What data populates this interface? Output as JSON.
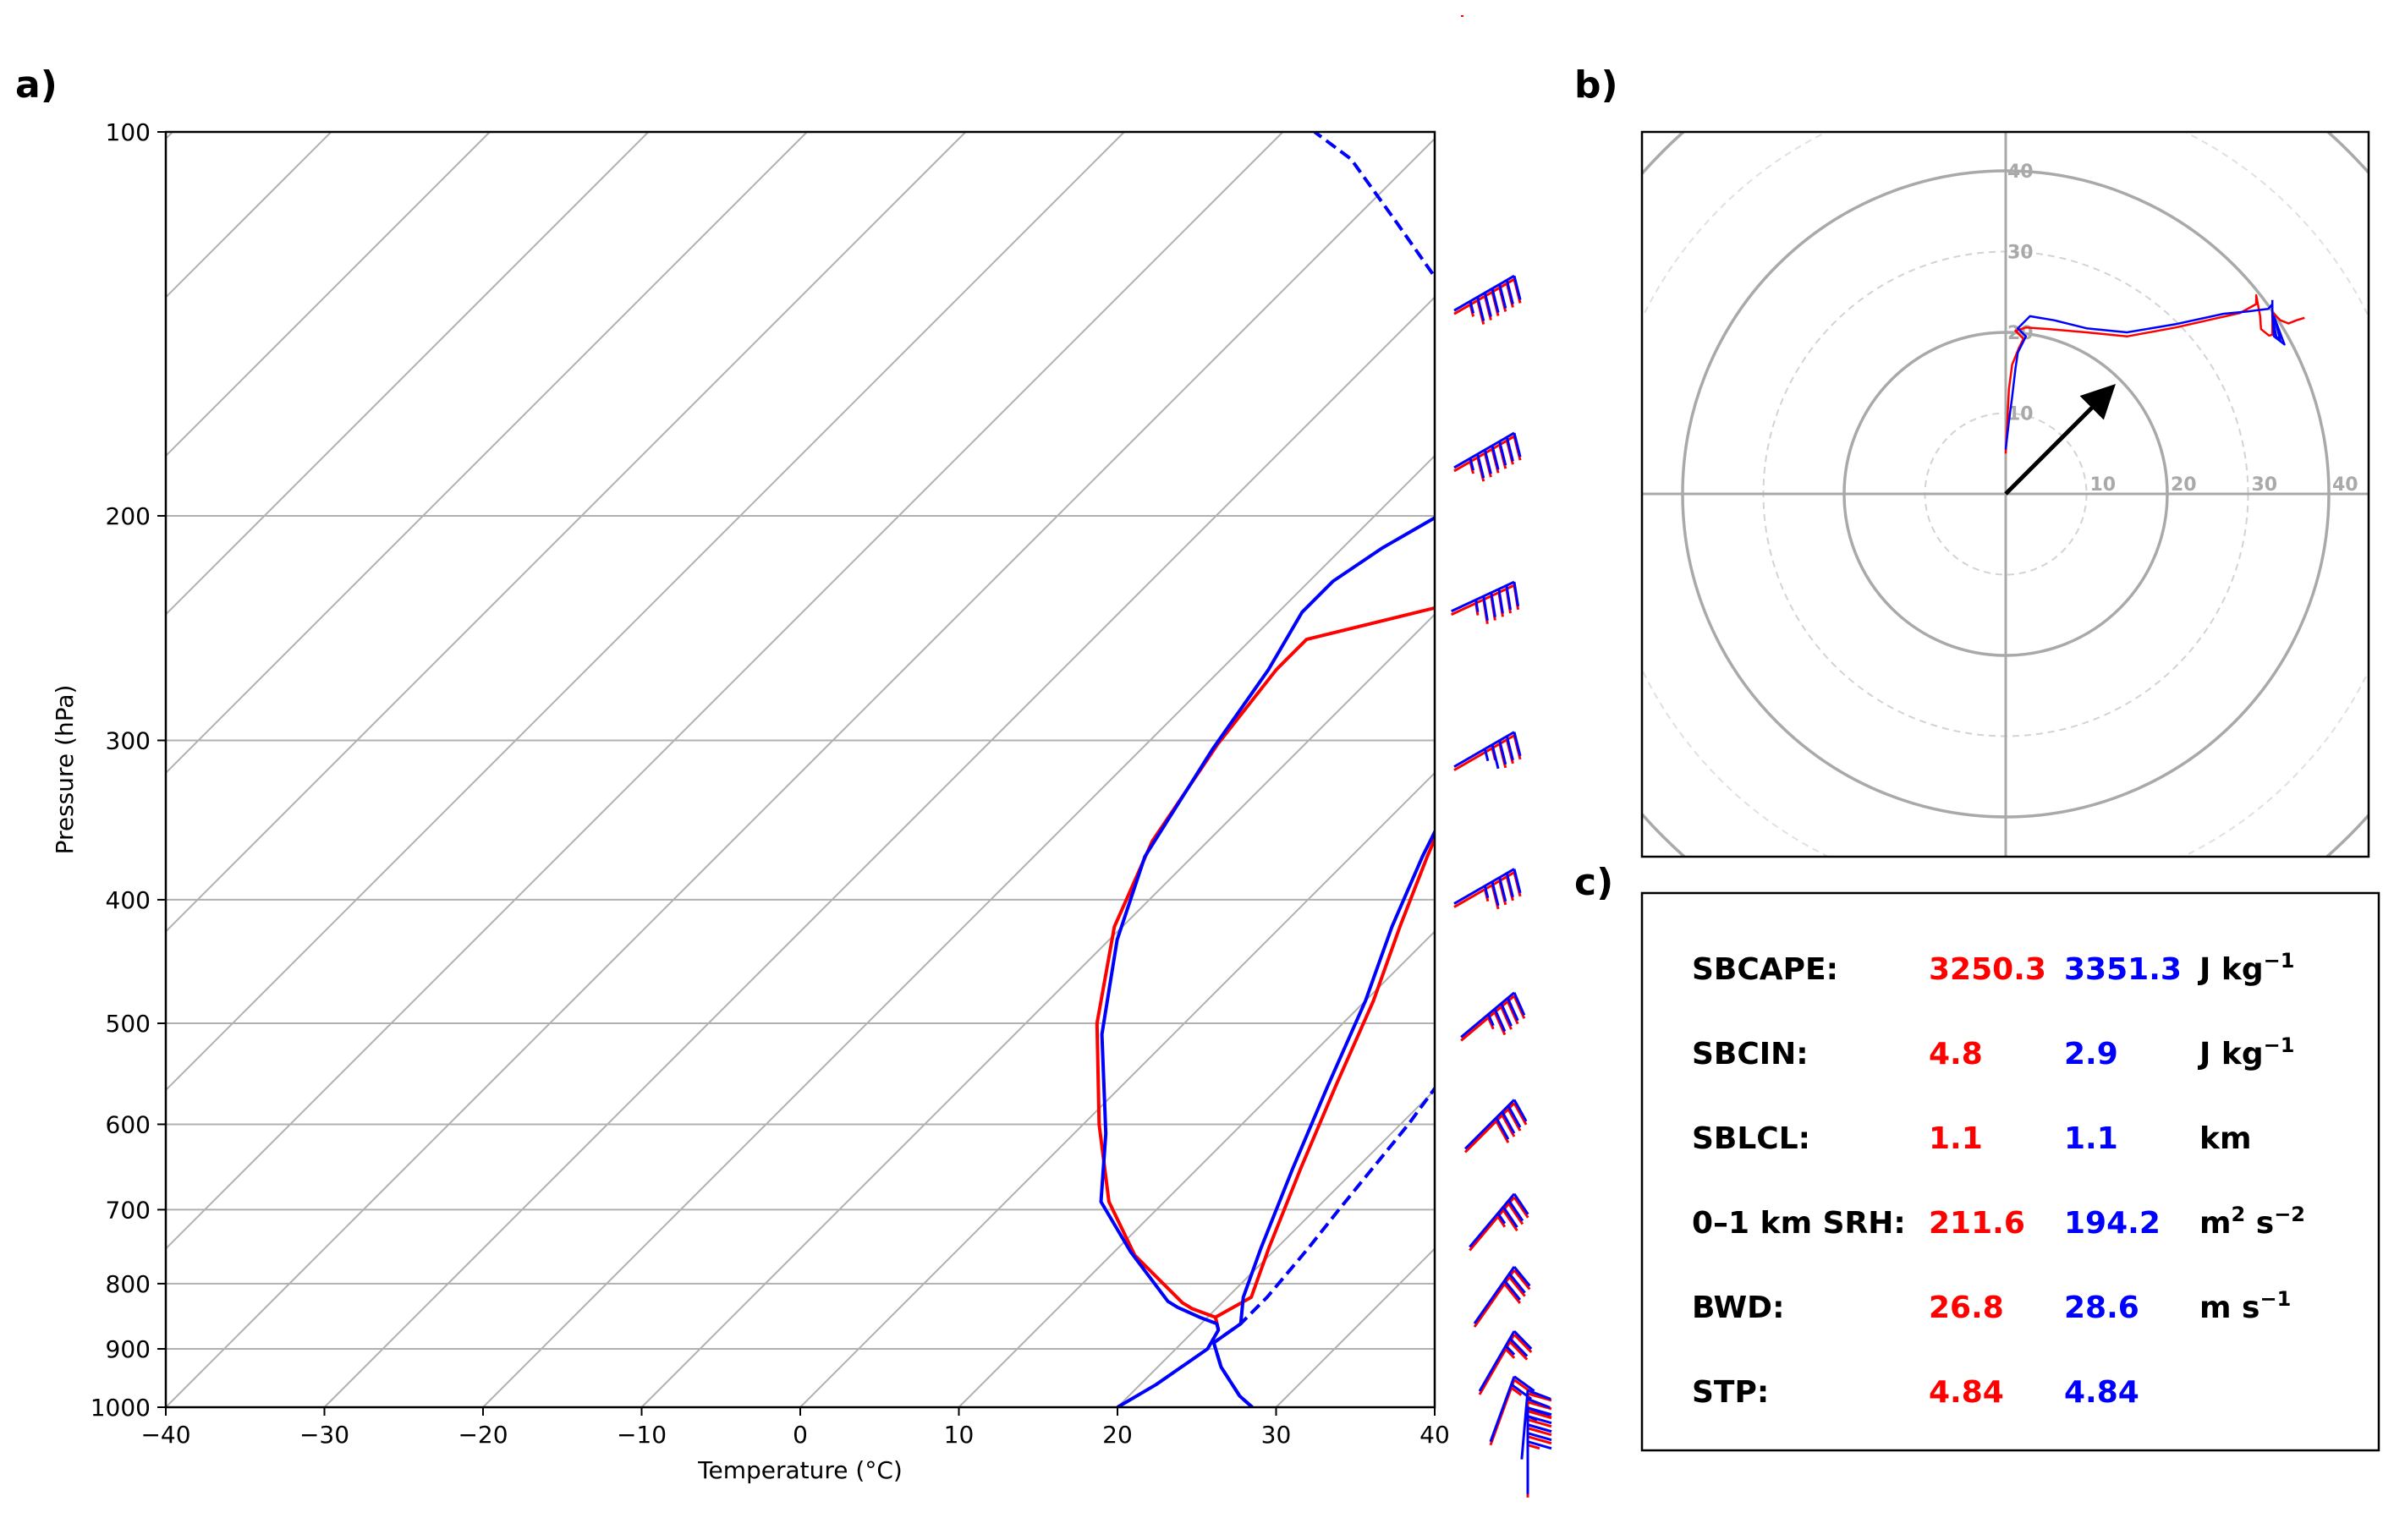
{
  "panel_labels": {
    "a": "a)",
    "b": "b)",
    "c": "c)"
  },
  "colors": {
    "model_red": "#ff0000",
    "model_blue": "#0000ff",
    "grid": "#b0b0b0",
    "hodo_ring": "#a9a9a9"
  },
  "chart_data": [
    {
      "type": "line",
      "name": "skew-t log-p sounding",
      "xlabel": "Temperature (°C)",
      "ylabel": "Pressure (hPa)",
      "xlim": [
        -40,
        40
      ],
      "ylim": [
        1000,
        100
      ],
      "x_ticks": [
        -40,
        -30,
        -20,
        -10,
        0,
        10,
        20,
        30,
        40
      ],
      "x_tick_labels": [
        "−40",
        "−30",
        "−20",
        "−10",
        "0",
        "10",
        "20",
        "30",
        "40"
      ],
      "y_ticks": [
        1000,
        900,
        800,
        700,
        600,
        500,
        400,
        300,
        200,
        100
      ],
      "y_tick_labels": [
        "1000",
        "900",
        "800",
        "700",
        "600",
        "500",
        "400",
        "300",
        "200",
        "100"
      ],
      "skew_degrees": 45,
      "series": [
        {
          "name": "red temperature",
          "color": "#ff0000",
          "style": "solid",
          "points": [
            [
              21.5,
              870
            ],
            [
              20.5,
              850
            ],
            [
              21.5,
              820
            ],
            [
              19.5,
              750
            ],
            [
              16.5,
              650
            ],
            [
              13.5,
              560
            ],
            [
              10.5,
              480
            ],
            [
              7.5,
              420
            ],
            [
              4.8,
              370
            ],
            [
              2.5,
              330
            ],
            [
              0.0,
              290
            ],
            [
              -2.5,
              255
            ],
            [
              -3.5,
              225
            ],
            [
              -3,
              205
            ],
            [
              -2.8,
              185
            ],
            [
              -2.0,
              170
            ],
            [
              0.5,
              155
            ],
            [
              6,
              140
            ],
            [
              9,
              132
            ],
            [
              12,
              125
            ],
            [
              16,
              113
            ],
            [
              19,
              104
            ],
            [
              20.5,
              100
            ]
          ]
        },
        {
          "name": "red dewpoint",
          "color": "#ff0000",
          "style": "solid",
          "points": [
            [
              21.5,
              870
            ],
            [
              20.5,
              850
            ],
            [
              18.5,
              837
            ],
            [
              17.5,
              828
            ],
            [
              11.5,
              760
            ],
            [
              6.5,
              690
            ],
            [
              1.0,
              600
            ],
            [
              -5.5,
              500
            ],
            [
              -10.5,
              420
            ],
            [
              -13.5,
              360
            ],
            [
              -15.5,
              302
            ],
            [
              -16.5,
              264
            ],
            [
              -16.5,
              250
            ],
            [
              -8.5,
              232
            ],
            [
              -7.5,
              215
            ],
            [
              -7.5,
              200
            ],
            [
              -7.5,
              185
            ],
            [
              -6.5,
              178
            ],
            [
              -8.0,
              172
            ],
            [
              -8.5,
              166
            ],
            [
              -7.0,
              155
            ],
            [
              -3.0,
              142
            ],
            [
              0.0,
              130
            ],
            [
              3,
              118
            ],
            [
              6,
              107
            ],
            [
              7.5,
              100
            ]
          ]
        },
        {
          "name": "blue temperature",
          "color": "#0000ff",
          "style": "solid",
          "points": [
            [
              28.5,
              1000
            ],
            [
              27.0,
              980
            ],
            [
              24.0,
              930
            ],
            [
              22.0,
              890
            ],
            [
              22.5,
              860
            ],
            [
              21.0,
              820
            ],
            [
              19.0,
              750
            ],
            [
              16.0,
              650
            ],
            [
              13.0,
              560
            ],
            [
              10.0,
              480
            ],
            [
              7.0,
              420
            ],
            [
              4.5,
              370
            ],
            [
              2.5,
              330
            ],
            [
              0.0,
              290
            ],
            [
              -2.5,
              255
            ],
            [
              -4.5,
              230
            ],
            [
              -4.5,
              220
            ],
            [
              -3.5,
              205
            ],
            [
              -3.0,
              185
            ],
            [
              -2.0,
              170
            ],
            [
              0.5,
              155
            ],
            [
              4,
              143
            ],
            [
              8,
              132
            ],
            [
              11,
              123
            ],
            [
              15,
              112
            ],
            [
              18,
              104
            ],
            [
              20.5,
              100
            ]
          ]
        },
        {
          "name": "blue dewpoint",
          "color": "#0000ff",
          "style": "solid",
          "points": [
            [
              20.0,
              1000
            ],
            [
              21.0,
              960
            ],
            [
              22.0,
              900
            ],
            [
              21.5,
              870
            ],
            [
              21.0,
              860
            ],
            [
              19.5,
              850
            ],
            [
              17.5,
              835
            ],
            [
              16.5,
              826
            ],
            [
              11.0,
              755
            ],
            [
              6.0,
              690
            ],
            [
              2.0,
              610
            ],
            [
              -4.5,
              510
            ],
            [
              -9.5,
              430
            ],
            [
              -13.0,
              370
            ],
            [
              -15.5,
              305
            ],
            [
              -17.0,
              264
            ],
            [
              -18.5,
              238
            ],
            [
              -18.5,
              225
            ],
            [
              -17.5,
              212
            ],
            [
              -16,
              200
            ],
            [
              -14,
              190
            ],
            [
              -11,
              178
            ],
            [
              -8.5,
              168
            ],
            [
              -4.5,
              154
            ],
            [
              -1.5,
              142
            ],
            [
              1.5,
              130
            ],
            [
              4,
              118
            ],
            [
              7,
              106
            ],
            [
              9,
              100
            ]
          ]
        },
        {
          "name": "blue parcel",
          "color": "#0000ff",
          "style": "dashed",
          "points": [
            [
              28.5,
              1000
            ],
            [
              27.0,
              980
            ],
            [
              24.0,
              930
            ],
            [
              22.0,
              890
            ],
            [
              22.5,
              860
            ],
            [
              22.5,
              820
            ],
            [
              22.0,
              750
            ],
            [
              21.5,
              700
            ],
            [
              20.5,
              600
            ],
            [
              18.8,
              500
            ],
            [
              16.0,
              420
            ],
            [
              12.5,
              370
            ],
            [
              8.5,
              330
            ],
            [
              4.5,
              300
            ],
            [
              0.5,
              270
            ],
            [
              -4.5,
              240
            ],
            [
              -9.5,
              210
            ],
            [
              -15.5,
              180
            ],
            [
              -22,
              155
            ],
            [
              -29,
              135
            ],
            [
              -37,
              118
            ],
            [
              -44,
              105
            ],
            [
              -48,
              100
            ]
          ]
        }
      ]
    },
    {
      "type": "line",
      "name": "hodograph",
      "ring_labels": [
        "10",
        "20",
        "30",
        "40"
      ],
      "rings_solid": [
        20,
        40
      ],
      "rings_dashed": [
        10,
        30
      ],
      "range": [
        -45,
        45
      ],
      "series": [
        {
          "name": "red hodograph",
          "color": "#ff0000",
          "points": [
            [
              0,
              5
            ],
            [
              0.2,
              9
            ],
            [
              0.4,
              13
            ],
            [
              0.8,
              16
            ],
            [
              1.6,
              18
            ],
            [
              2.2,
              19.2
            ],
            [
              1.2,
              20.2
            ],
            [
              2.5,
              20.6
            ],
            [
              5.5,
              20.4
            ],
            [
              10,
              20
            ],
            [
              15,
              19.5
            ],
            [
              21,
              20.6
            ],
            [
              25,
              21.5
            ],
            [
              29,
              22.4
            ],
            [
              31,
              23.5
            ],
            [
              31,
              24.6
            ],
            [
              31.5,
              22
            ],
            [
              31.6,
              20.4
            ],
            [
              32.6,
              19.6
            ],
            [
              33,
              19.7
            ],
            [
              33,
              23.2
            ],
            [
              33,
              22.5
            ],
            [
              34,
              21.5
            ],
            [
              35,
              21.1
            ],
            [
              36,
              21.5
            ],
            [
              37,
              21.8
            ]
          ]
        },
        {
          "name": "blue hodograph",
          "color": "#0000ff",
          "points": [
            [
              0,
              5.5
            ],
            [
              0.4,
              9
            ],
            [
              0.8,
              12
            ],
            [
              1.2,
              15.5
            ],
            [
              1.5,
              17.5
            ],
            [
              2.5,
              19.5
            ],
            [
              1.5,
              20.5
            ],
            [
              3,
              22
            ],
            [
              6,
              21.5
            ],
            [
              10,
              20.5
            ],
            [
              15,
              20
            ],
            [
              21,
              21
            ],
            [
              27,
              22.3
            ],
            [
              30,
              22.6
            ],
            [
              32.5,
              22.9
            ],
            [
              33,
              23.5
            ],
            [
              33,
              22
            ],
            [
              33.5,
              19.5
            ],
            [
              34,
              19
            ],
            [
              33.2,
              22
            ],
            [
              34.5,
              18.5
            ],
            [
              33.2,
              19.5
            ],
            [
              33,
              22.5
            ],
            [
              33,
              24
            ]
          ]
        }
      ],
      "arrow": {
        "u": 12.5,
        "v": 12.5,
        "color": "#000000"
      }
    }
  ],
  "wind_barbs": [
    {
      "p": 122,
      "blue": {
        "dir": 240,
        "kt": 65
      },
      "red": {
        "dir": 240,
        "kt": 65
      }
    },
    {
      "p": 162,
      "blue": {
        "dir": 240,
        "kt": 65
      },
      "red": {
        "dir": 240,
        "kt": 65
      }
    },
    {
      "p": 212,
      "blue": {
        "dir": 245,
        "kt": 55
      },
      "red": {
        "dir": 245,
        "kt": 55
      }
    },
    {
      "p": 278,
      "blue": {
        "dir": 240,
        "kt": 45
      },
      "red": {
        "dir": 240,
        "kt": 35
      }
    },
    {
      "p": 356,
      "blue": {
        "dir": 240,
        "kt": 45
      },
      "red": {
        "dir": 240,
        "kt": 45
      }
    },
    {
      "p": 445,
      "blue": {
        "dir": 230,
        "kt": 45
      },
      "red": {
        "dir": 230,
        "kt": 45
      }
    },
    {
      "p": 540,
      "blue": {
        "dir": 225,
        "kt": 40
      },
      "red": {
        "dir": 225,
        "kt": 40
      }
    },
    {
      "p": 640,
      "blue": {
        "dir": 220,
        "kt": 35
      },
      "red": {
        "dir": 220,
        "kt": 35
      }
    },
    {
      "p": 730,
      "blue": {
        "dir": 215,
        "kt": 30
      },
      "red": {
        "dir": 215,
        "kt": 30
      }
    },
    {
      "p": 820,
      "blue": {
        "dir": 210,
        "kt": 25
      },
      "red": {
        "dir": 210,
        "kt": 25
      }
    },
    {
      "p": 890,
      "blue": {
        "dir": 200,
        "kt": 20
      },
      "red": {
        "dir": 200,
        "kt": 15
      }
    },
    {
      "p": 935,
      "blue": {
        "dir": 185,
        "kt": 35
      },
      "red": {
        "dir": 180,
        "kt": 30
      }
    },
    {
      "p": 965,
      "blue": {
        "dir": 180,
        "kt": 30
      },
      "red": {
        "dir": 180,
        "kt": 25
      }
    },
    {
      "p": 995,
      "blue": {
        "dir": 180,
        "kt": 30
      },
      "red": {
        "dir": 180,
        "kt": 25
      }
    }
  ],
  "table": {
    "rows": [
      {
        "label": "SBCAPE:",
        "red": "3250.3",
        "blue": "3351.3",
        "unit_base": "J kg",
        "unit_sup": "−1",
        "unit_rest": ""
      },
      {
        "label": "SBCIN:",
        "red": "4.8",
        "blue": "2.9",
        "unit_base": "J kg",
        "unit_sup": "−1",
        "unit_rest": ""
      },
      {
        "label": "SBLCL:",
        "red": "1.1",
        "blue": "1.1",
        "unit_base": "km",
        "unit_sup": "",
        "unit_rest": ""
      },
      {
        "label": "0–1 km SRH:",
        "red": "211.6",
        "blue": "194.2",
        "unit_base": "m",
        "unit_sup": "2",
        "unit_rest": " s",
        "unit_sup2": "−2"
      },
      {
        "label": "BWD:",
        "red": "26.8",
        "blue": "28.6",
        "unit_base": "m s",
        "unit_sup": "−1",
        "unit_rest": ""
      },
      {
        "label": "STP:",
        "red": "4.84",
        "blue": "4.84",
        "unit_base": "",
        "unit_sup": "",
        "unit_rest": ""
      }
    ]
  }
}
